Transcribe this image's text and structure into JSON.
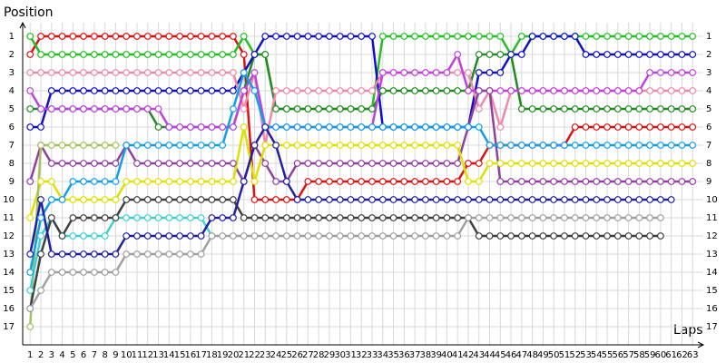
{
  "chart_data": {
    "type": "line",
    "y_title": "Position",
    "x_title": "Laps",
    "x": [
      1,
      2,
      3,
      4,
      5,
      6,
      7,
      8,
      9,
      10,
      11,
      12,
      13,
      14,
      15,
      16,
      17,
      18,
      19,
      20,
      21,
      22,
      23,
      24,
      25,
      26,
      27,
      28,
      29,
      30,
      31,
      32,
      33,
      34,
      35,
      36,
      37,
      38,
      39,
      40,
      41,
      42,
      43,
      44,
      45,
      46,
      47,
      48,
      49,
      50,
      51,
      52,
      53,
      54,
      55,
      56,
      57,
      58,
      59,
      60,
      61,
      62,
      63
    ],
    "xlim": [
      0.3,
      64
    ],
    "ylim": [
      18,
      0.25
    ],
    "xticks": [
      1,
      2,
      3,
      4,
      5,
      6,
      7,
      8,
      9,
      10,
      11,
      12,
      13,
      14,
      15,
      16,
      17,
      18,
      19,
      20,
      21,
      22,
      23,
      24,
      25,
      26,
      27,
      28,
      29,
      30,
      31,
      32,
      33,
      34,
      35,
      36,
      37,
      38,
      39,
      40,
      41,
      42,
      43,
      44,
      45,
      46,
      47,
      48,
      49,
      50,
      51,
      52,
      53,
      54,
      55,
      56,
      57,
      58,
      59,
      60,
      61,
      62,
      63
    ],
    "yticks": [
      1,
      2,
      3,
      4,
      5,
      6,
      7,
      8,
      9,
      10,
      11,
      12,
      13,
      14,
      15,
      16,
      17
    ],
    "grid": true,
    "series": [
      {
        "color": "#e01010",
        "values": [
          2,
          1,
          1,
          1,
          1,
          1,
          1,
          1,
          1,
          1,
          1,
          1,
          1,
          1,
          1,
          1,
          1,
          1,
          1,
          1,
          2,
          10,
          10,
          10,
          10,
          10,
          9,
          9,
          9,
          9,
          9,
          9,
          9,
          9,
          9,
          9,
          9,
          9,
          9,
          9,
          9,
          8,
          8,
          7,
          7,
          7,
          7,
          7,
          7,
          7,
          7,
          6,
          6,
          6,
          6,
          6,
          6,
          6,
          6,
          6,
          6,
          6,
          6
        ]
      },
      {
        "color": "#22c022",
        "values": [
          1,
          2,
          2,
          2,
          2,
          2,
          2,
          2,
          2,
          2,
          2,
          2,
          2,
          2,
          2,
          2,
          2,
          2,
          2,
          2,
          1,
          2,
          2,
          5,
          5,
          5,
          5,
          5,
          5,
          5,
          5,
          5,
          5,
          1,
          1,
          1,
          1,
          1,
          1,
          1,
          1,
          1,
          1,
          1,
          1,
          2,
          1,
          1,
          1,
          1,
          1,
          1,
          1,
          1,
          1,
          1,
          1,
          1,
          1,
          1,
          1,
          1,
          1
        ]
      },
      {
        "color": "#228a22",
        "values": [
          5,
          5,
          5,
          5,
          5,
          5,
          5,
          5,
          5,
          5,
          5,
          5,
          6,
          6,
          6,
          6,
          6,
          6,
          6,
          6,
          4,
          2,
          2,
          5,
          5,
          5,
          5,
          5,
          5,
          5,
          5,
          5,
          5,
          4,
          4,
          4,
          4,
          4,
          4,
          4,
          4,
          4,
          2,
          2,
          2,
          2,
          5,
          5,
          5,
          5,
          5,
          5,
          5,
          5,
          5,
          5,
          5,
          5,
          5,
          5,
          5,
          5,
          5
        ]
      },
      {
        "color": "#1010c8",
        "values": [
          6,
          6,
          4,
          4,
          4,
          4,
          4,
          4,
          4,
          4,
          4,
          4,
          4,
          4,
          4,
          4,
          4,
          4,
          4,
          4,
          3,
          2,
          1,
          1,
          1,
          1,
          1,
          1,
          1,
          1,
          1,
          1,
          1,
          6,
          6,
          6,
          6,
          6,
          6,
          6,
          6,
          6,
          3,
          3,
          3,
          2,
          2,
          1,
          1,
          1,
          1,
          1,
          2,
          2,
          2,
          2,
          2,
          2,
          2,
          2,
          2,
          2,
          2
        ]
      },
      {
        "color": "#f088a8",
        "values": [
          3,
          3,
          3,
          3,
          3,
          3,
          3,
          3,
          3,
          3,
          3,
          3,
          3,
          3,
          3,
          3,
          3,
          3,
          3,
          3,
          5,
          3,
          7,
          4,
          4,
          4,
          4,
          4,
          4,
          4,
          4,
          4,
          4,
          3,
          3,
          3,
          3,
          3,
          3,
          3,
          3,
          3,
          5,
          4,
          6,
          4,
          4,
          4,
          4,
          4,
          4,
          4,
          4,
          4,
          4,
          4,
          4,
          4,
          4,
          4,
          4,
          4,
          4
        ]
      },
      {
        "color": "#c040e0",
        "values": [
          4,
          5,
          5,
          5,
          5,
          5,
          5,
          5,
          5,
          5,
          5,
          5,
          5,
          6,
          6,
          6,
          6,
          6,
          6,
          6,
          4,
          3,
          6,
          6,
          6,
          6,
          6,
          6,
          6,
          6,
          6,
          6,
          6,
          3,
          3,
          3,
          3,
          3,
          3,
          3,
          2,
          4,
          4,
          4,
          4,
          4,
          4,
          4,
          4,
          4,
          4,
          4,
          4,
          4,
          4,
          4,
          4,
          4,
          3,
          3,
          3,
          3,
          3
        ]
      },
      {
        "color": "#9040a0",
        "values": [
          9,
          7,
          8,
          8,
          8,
          8,
          8,
          8,
          8,
          7,
          8,
          8,
          8,
          8,
          8,
          8,
          8,
          8,
          8,
          8,
          9,
          7,
          8,
          9,
          9,
          8,
          8,
          8,
          8,
          8,
          8,
          8,
          8,
          8,
          8,
          8,
          8,
          8,
          8,
          8,
          8,
          6,
          4,
          4,
          9,
          9,
          9,
          9,
          9,
          9,
          9,
          9,
          9,
          9,
          9,
          9,
          9,
          9,
          9,
          9,
          9,
          9,
          9
        ]
      },
      {
        "color": "#e0e000",
        "values": [
          11,
          9,
          9,
          10,
          10,
          10,
          10,
          10,
          10,
          9,
          9,
          9,
          9,
          9,
          9,
          9,
          9,
          9,
          9,
          9,
          6,
          9,
          7,
          7,
          7,
          7,
          7,
          7,
          7,
          7,
          7,
          7,
          7,
          7,
          7,
          7,
          7,
          7,
          7,
          7,
          7,
          9,
          9,
          8,
          8,
          8,
          8,
          8,
          8,
          8,
          8,
          8,
          8,
          8,
          8,
          8,
          8,
          8,
          8,
          8,
          8,
          8,
          8
        ]
      },
      {
        "color": "#a8c060",
        "values": [
          17,
          7,
          7,
          7,
          7,
          7,
          7,
          7,
          7,
          null,
          null,
          null,
          null,
          null,
          null,
          null,
          null,
          null,
          null,
          null,
          null,
          null,
          null,
          null,
          null,
          null,
          null,
          null,
          null,
          null,
          null,
          null,
          null,
          null,
          null,
          null,
          null,
          null,
          null,
          null,
          null,
          null,
          null,
          null,
          null,
          null,
          null,
          null,
          null,
          null,
          null,
          null,
          null,
          null,
          null,
          null,
          null,
          null,
          null,
          null,
          null,
          null,
          null
        ]
      },
      {
        "color": "#10a0e8",
        "values": [
          14,
          11,
          10,
          10,
          9,
          9,
          9,
          9,
          9,
          7,
          7,
          7,
          7,
          7,
          7,
          7,
          7,
          7,
          7,
          5,
          3,
          4,
          6,
          6,
          6,
          6,
          6,
          6,
          6,
          6,
          6,
          6,
          6,
          6,
          6,
          6,
          6,
          6,
          6,
          6,
          6,
          6,
          6,
          7,
          7,
          7,
          7,
          7,
          7,
          7,
          7,
          7,
          7,
          7,
          7,
          7,
          7,
          7,
          7,
          7,
          7,
          7,
          7
        ]
      },
      {
        "color": "#40d0d0",
        "values": [
          15,
          12,
          11,
          12,
          12,
          12,
          12,
          12,
          11,
          11,
          11,
          11,
          11,
          11,
          11,
          11,
          11,
          12,
          null,
          null,
          null,
          null,
          null,
          null,
          null,
          null,
          null,
          null,
          null,
          null,
          null,
          null,
          null,
          null,
          null,
          null,
          null,
          null,
          null,
          null,
          null,
          null,
          null,
          null,
          null,
          null,
          null,
          null,
          null,
          null,
          null,
          null,
          null,
          null,
          null,
          null,
          null,
          null,
          null,
          null,
          null,
          null,
          null
        ]
      },
      {
        "color": "#404040",
        "values": [
          16,
          13,
          11,
          12,
          11,
          11,
          11,
          11,
          11,
          10,
          10,
          10,
          10,
          10,
          10,
          10,
          10,
          10,
          10,
          10,
          11,
          11,
          11,
          11,
          11,
          11,
          11,
          11,
          11,
          11,
          11,
          11,
          11,
          11,
          11,
          11,
          11,
          11,
          11,
          11,
          11,
          11,
          12,
          12,
          12,
          12,
          12,
          12,
          12,
          12,
          12,
          12,
          12,
          12,
          12,
          12,
          12,
          12,
          12,
          12,
          null,
          null,
          null
        ]
      },
      {
        "color": "#2020a0",
        "values": [
          13,
          10,
          13,
          13,
          13,
          13,
          13,
          13,
          13,
          12,
          12,
          12,
          12,
          12,
          12,
          12,
          12,
          11,
          11,
          11,
          9,
          7,
          6,
          7,
          9,
          10,
          10,
          10,
          10,
          10,
          10,
          10,
          10,
          10,
          10,
          10,
          10,
          10,
          10,
          10,
          10,
          10,
          10,
          10,
          10,
          10,
          10,
          10,
          10,
          10,
          10,
          10,
          10,
          10,
          10,
          10,
          10,
          10,
          10,
          10,
          10,
          null,
          null
        ]
      },
      {
        "color": "#a0a0a0",
        "values": [
          16,
          15,
          14,
          14,
          14,
          14,
          14,
          14,
          14,
          13,
          13,
          13,
          13,
          13,
          13,
          13,
          13,
          12,
          12,
          12,
          12,
          12,
          12,
          12,
          12,
          12,
          12,
          12,
          12,
          12,
          12,
          12,
          12,
          12,
          12,
          12,
          12,
          12,
          12,
          12,
          12,
          11,
          11,
          11,
          11,
          11,
          11,
          11,
          11,
          11,
          11,
          11,
          11,
          11,
          11,
          11,
          11,
          11,
          11,
          11,
          null,
          null,
          null
        ]
      }
    ]
  }
}
